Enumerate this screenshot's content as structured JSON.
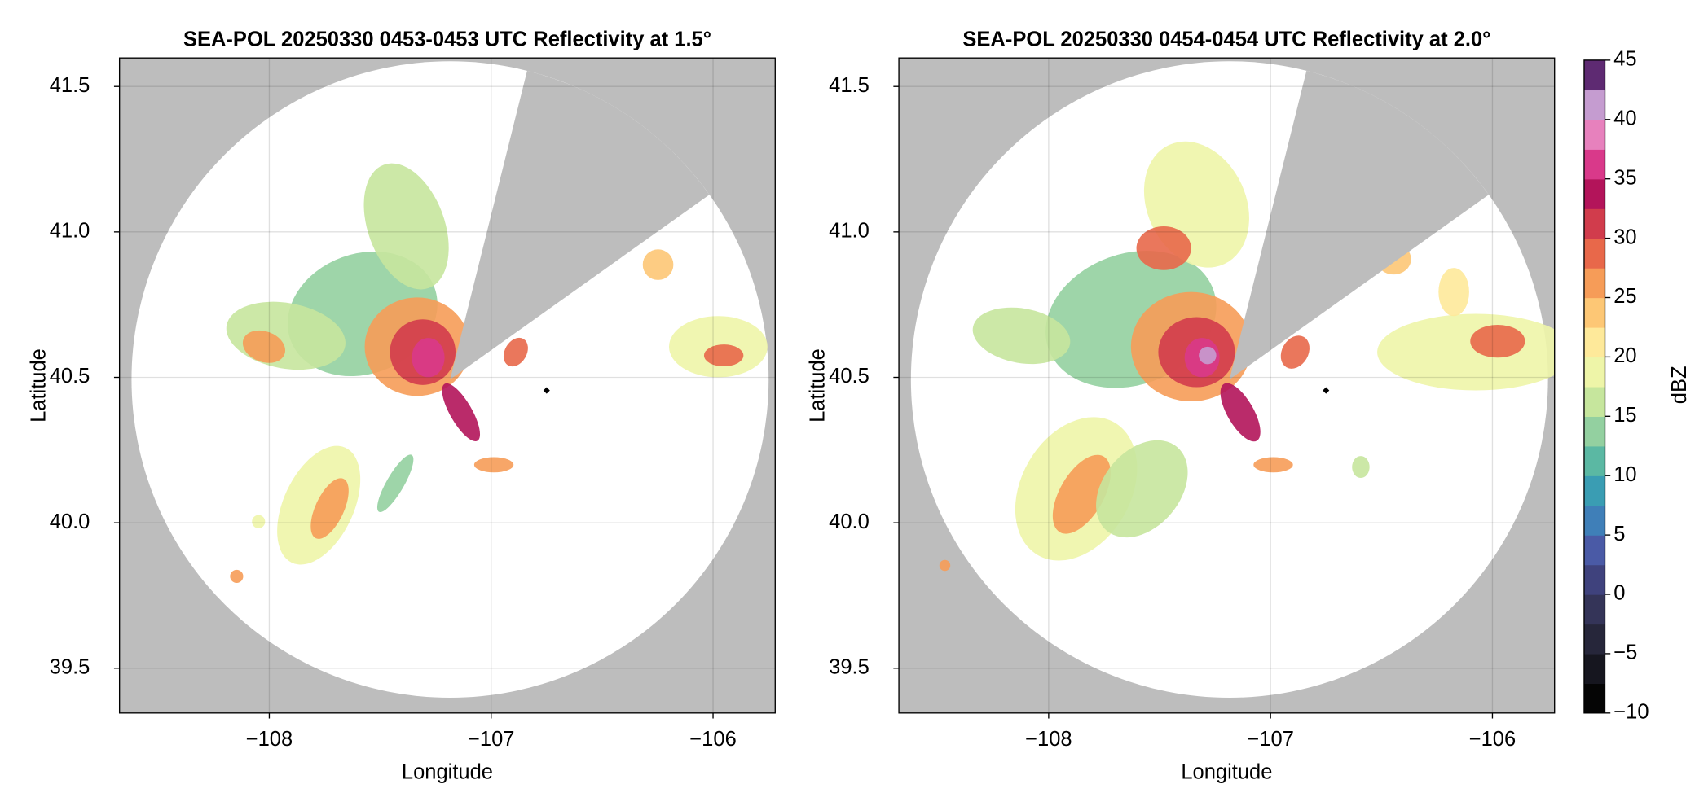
{
  "chart_data": [
    {
      "type": "radar_ppi",
      "title": "SEA-POL 20250330 0453-0453 UTC Reflectivity at 1.5°",
      "x_label": "Longitude",
      "y_label": "Latitude",
      "xlim": [
        -108.675,
        -105.72
      ],
      "ylim": [
        39.346,
        41.598
      ],
      "xticks": [
        {
          "value": -108,
          "label": "−108"
        },
        {
          "value": -107,
          "label": "−107"
        },
        {
          "value": -106,
          "label": "−106"
        }
      ],
      "yticks": [
        {
          "value": 39.5,
          "label": "39.5"
        },
        {
          "value": 40,
          "label": "40.0"
        },
        {
          "value": 40.5,
          "label": "40.5"
        },
        {
          "value": 41,
          "label": "41.0"
        },
        {
          "value": 41.5,
          "label": "41.5"
        }
      ],
      "marker": {
        "x": -106.75,
        "y": 40.455
      },
      "grid": true
    },
    {
      "type": "radar_ppi",
      "title": "SEA-POL 20250330 0454-0454 UTC Reflectivity at 2.0°",
      "x_label": "Longitude",
      "y_label": "Latitude",
      "xlim": [
        -108.675,
        -105.72
      ],
      "ylim": [
        39.346,
        41.598
      ],
      "xticks": [
        {
          "value": -108,
          "label": "−108"
        },
        {
          "value": -107,
          "label": "−107"
        },
        {
          "value": -106,
          "label": "−106"
        }
      ],
      "yticks": [
        {
          "value": 39.5,
          "label": "39.5"
        },
        {
          "value": 40,
          "label": "40.0"
        },
        {
          "value": 40.5,
          "label": "40.5"
        },
        {
          "value": 41,
          "label": "41.0"
        },
        {
          "value": 41.5,
          "label": "41.5"
        }
      ],
      "marker": {
        "x": -106.75,
        "y": 40.455
      },
      "grid": true
    },
    {
      "type": "colorbar",
      "label": "dBZ",
      "ylim": [
        -10,
        45
      ],
      "yticks": [
        {
          "value": -10,
          "label": "−10"
        },
        {
          "value": -5,
          "label": "−5"
        },
        0,
        5,
        10,
        15,
        20,
        25,
        30,
        35,
        40,
        45
      ],
      "colors": [
        "#050505",
        "#16161f",
        "#26263a",
        "#343458",
        "#3f427d",
        "#4a5aa6",
        "#3f7fb8",
        "#3a9db3",
        "#5bb8a3",
        "#93d0a0",
        "#c6e69d",
        "#eef5a8",
        "#fee99a",
        "#fdc775",
        "#f69c58",
        "#e8684a",
        "#d13c4c",
        "#b3145a",
        "#d9398a",
        "#e781bd",
        "#c59cd0",
        "#5e2a72"
      ]
    }
  ]
}
